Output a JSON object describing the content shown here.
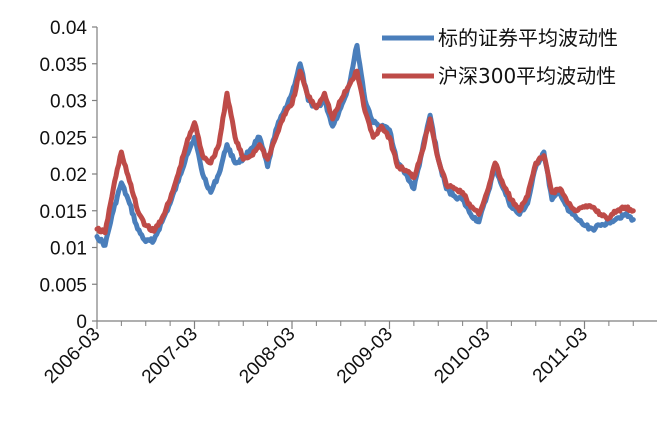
{
  "chart_data": {
    "type": "line",
    "title": "",
    "xlabel": "",
    "ylabel": "",
    "x_ticks": [
      "2006-03",
      "2007-03",
      "2008-03",
      "2009-03",
      "2010-03",
      "2011-03"
    ],
    "y_ticks": [
      "0",
      "0.005",
      "0.01",
      "0.015",
      "0.02",
      "0.025",
      "0.03",
      "0.035",
      "0.04"
    ],
    "ylim": [
      0,
      0.04
    ],
    "xlim": [
      "2006-03",
      "2011-09"
    ],
    "grid": false,
    "legend_position": "top-right",
    "series": [
      {
        "name": "标的证券平均波动性",
        "color": "#4A7EBB",
        "points": [
          [
            "2006-03",
            0.0115
          ],
          [
            "2006-04",
            0.0103
          ],
          [
            "2006-05",
            0.015
          ],
          [
            "2006-06",
            0.0188
          ],
          [
            "2006-07",
            0.016
          ],
          [
            "2006-08",
            0.0125
          ],
          [
            "2006-09",
            0.0108
          ],
          [
            "2006-10",
            0.011
          ],
          [
            "2006-11",
            0.0135
          ],
          [
            "2006-12",
            0.016
          ],
          [
            "2007-01",
            0.019
          ],
          [
            "2007-02",
            0.0225
          ],
          [
            "2007-03",
            0.025
          ],
          [
            "2007-04",
            0.02
          ],
          [
            "2007-05",
            0.0175
          ],
          [
            "2007-06",
            0.02
          ],
          [
            "2007-07",
            0.024
          ],
          [
            "2007-08",
            0.0215
          ],
          [
            "2007-09",
            0.022
          ],
          [
            "2007-10",
            0.0235
          ],
          [
            "2007-11",
            0.025
          ],
          [
            "2007-12",
            0.021
          ],
          [
            "2008-01",
            0.026
          ],
          [
            "2008-02",
            0.0285
          ],
          [
            "2008-03",
            0.031
          ],
          [
            "2008-04",
            0.035
          ],
          [
            "2008-05",
            0.03
          ],
          [
            "2008-06",
            0.029
          ],
          [
            "2008-07",
            0.03
          ],
          [
            "2008-08",
            0.0265
          ],
          [
            "2008-09",
            0.029
          ],
          [
            "2008-10",
            0.032
          ],
          [
            "2008-11",
            0.0375
          ],
          [
            "2008-12",
            0.03
          ],
          [
            "2009-01",
            0.027
          ],
          [
            "2009-02",
            0.0265
          ],
          [
            "2009-03",
            0.026
          ],
          [
            "2009-04",
            0.0215
          ],
          [
            "2009-05",
            0.02
          ],
          [
            "2009-06",
            0.018
          ],
          [
            "2009-07",
            0.023
          ],
          [
            "2009-08",
            0.028
          ],
          [
            "2009-09",
            0.022
          ],
          [
            "2009-10",
            0.018
          ],
          [
            "2009-11",
            0.017
          ],
          [
            "2009-12",
            0.0165
          ],
          [
            "2010-01",
            0.0145
          ],
          [
            "2010-02",
            0.0135
          ],
          [
            "2010-03",
            0.017
          ],
          [
            "2010-04",
            0.021
          ],
          [
            "2010-05",
            0.018
          ],
          [
            "2010-06",
            0.0155
          ],
          [
            "2010-07",
            0.0145
          ],
          [
            "2010-08",
            0.016
          ],
          [
            "2010-09",
            0.021
          ],
          [
            "2010-10",
            0.023
          ],
          [
            "2010-11",
            0.0165
          ],
          [
            "2010-12",
            0.0175
          ],
          [
            "2011-01",
            0.015
          ],
          [
            "2011-02",
            0.014
          ],
          [
            "2011-03",
            0.013
          ],
          [
            "2011-04",
            0.0125
          ],
          [
            "2011-05",
            0.013
          ],
          [
            "2011-06",
            0.0135
          ],
          [
            "2011-07",
            0.014
          ],
          [
            "2011-08",
            0.0145
          ],
          [
            "2011-09",
            0.0138
          ]
        ]
      },
      {
        "name": "沪深300平均波动性",
        "color": "#BE4B48",
        "points": [
          [
            "2006-03",
            0.0125
          ],
          [
            "2006-04",
            0.012
          ],
          [
            "2006-05",
            0.018
          ],
          [
            "2006-06",
            0.023
          ],
          [
            "2006-07",
            0.019
          ],
          [
            "2006-08",
            0.015
          ],
          [
            "2006-09",
            0.013
          ],
          [
            "2006-10",
            0.0122
          ],
          [
            "2006-11",
            0.014
          ],
          [
            "2006-12",
            0.0165
          ],
          [
            "2007-01",
            0.02
          ],
          [
            "2007-02",
            0.024
          ],
          [
            "2007-03",
            0.027
          ],
          [
            "2007-04",
            0.0225
          ],
          [
            "2007-05",
            0.0215
          ],
          [
            "2007-06",
            0.024
          ],
          [
            "2007-07",
            0.031
          ],
          [
            "2007-08",
            0.025
          ],
          [
            "2007-09",
            0.022
          ],
          [
            "2007-10",
            0.0225
          ],
          [
            "2007-11",
            0.024
          ],
          [
            "2007-12",
            0.022
          ],
          [
            "2008-01",
            0.025
          ],
          [
            "2008-02",
            0.028
          ],
          [
            "2008-03",
            0.0295
          ],
          [
            "2008-04",
            0.034
          ],
          [
            "2008-05",
            0.0305
          ],
          [
            "2008-06",
            0.029
          ],
          [
            "2008-07",
            0.031
          ],
          [
            "2008-08",
            0.0275
          ],
          [
            "2008-09",
            0.03
          ],
          [
            "2008-10",
            0.032
          ],
          [
            "2008-11",
            0.034
          ],
          [
            "2008-12",
            0.0285
          ],
          [
            "2009-01",
            0.025
          ],
          [
            "2009-02",
            0.0265
          ],
          [
            "2009-03",
            0.025
          ],
          [
            "2009-04",
            0.021
          ],
          [
            "2009-05",
            0.0205
          ],
          [
            "2009-06",
            0.0195
          ],
          [
            "2009-07",
            0.023
          ],
          [
            "2009-08",
            0.0275
          ],
          [
            "2009-09",
            0.022
          ],
          [
            "2009-10",
            0.0185
          ],
          [
            "2009-11",
            0.018
          ],
          [
            "2009-12",
            0.0175
          ],
          [
            "2010-01",
            0.0155
          ],
          [
            "2010-02",
            0.0145
          ],
          [
            "2010-03",
            0.0175
          ],
          [
            "2010-04",
            0.0215
          ],
          [
            "2010-05",
            0.0185
          ],
          [
            "2010-06",
            0.0165
          ],
          [
            "2010-07",
            0.015
          ],
          [
            "2010-08",
            0.017
          ],
          [
            "2010-09",
            0.0215
          ],
          [
            "2010-10",
            0.0225
          ],
          [
            "2010-11",
            0.0175
          ],
          [
            "2010-12",
            0.018
          ],
          [
            "2011-01",
            0.016
          ],
          [
            "2011-02",
            0.015
          ],
          [
            "2011-03",
            0.0155
          ],
          [
            "2011-04",
            0.0155
          ],
          [
            "2011-05",
            0.0145
          ],
          [
            "2011-06",
            0.014
          ],
          [
            "2011-07",
            0.015
          ],
          [
            "2011-08",
            0.0155
          ],
          [
            "2011-09",
            0.015
          ]
        ]
      }
    ]
  }
}
